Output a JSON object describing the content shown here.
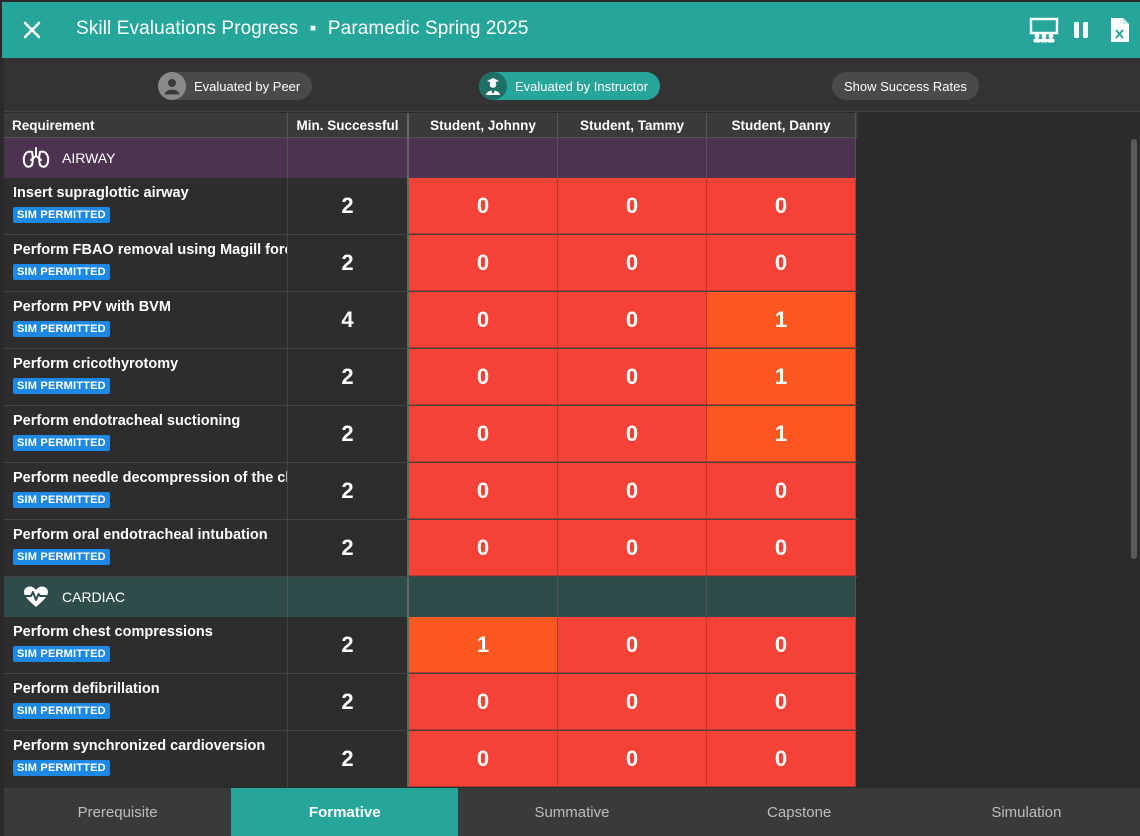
{
  "title": {
    "main": "Skill Evaluations Progress",
    "separator": "▪",
    "cohort": "Paramedic Spring 2025"
  },
  "toolbar_icons": [
    "presentation-icon",
    "pause-icon",
    "excel-export-icon"
  ],
  "filters": {
    "peer": "Evaluated by Peer",
    "instructor": "Evaluated by Instructor",
    "rates": "Show Success Rates"
  },
  "table": {
    "headers": {
      "requirement": "Requirement",
      "min": "Min. Successful",
      "students": [
        "Student, Johnny",
        "Student, Tammy",
        "Student, Danny"
      ]
    },
    "categories": [
      {
        "name": "AIRWAY",
        "icon": "airway-icon",
        "skills": [
          {
            "name": "Insert supraglottic airway",
            "badge": "SIM PERMITTED",
            "min": "2",
            "values": [
              "0",
              "0",
              "0"
            ]
          },
          {
            "name": "Perform FBAO removal using Magill forceps",
            "badge": "SIM PERMITTED",
            "min": "2",
            "values": [
              "0",
              "0",
              "0"
            ]
          },
          {
            "name": "Perform PPV with BVM",
            "badge": "SIM PERMITTED",
            "min": "4",
            "values": [
              "0",
              "0",
              "1"
            ]
          },
          {
            "name": "Perform cricothyrotomy",
            "badge": "SIM PERMITTED",
            "min": "2",
            "values": [
              "0",
              "0",
              "1"
            ]
          },
          {
            "name": "Perform endotracheal suctioning",
            "badge": "SIM PERMITTED",
            "min": "2",
            "values": [
              "0",
              "0",
              "1"
            ]
          },
          {
            "name": "Perform needle decompression of the chest",
            "badge": "SIM PERMITTED",
            "min": "2",
            "values": [
              "0",
              "0",
              "0"
            ]
          },
          {
            "name": "Perform oral endotracheal intubation",
            "badge": "SIM PERMITTED",
            "min": "2",
            "values": [
              "0",
              "0",
              "0"
            ]
          }
        ]
      },
      {
        "name": "CARDIAC",
        "icon": "heart-pulse-icon",
        "skills": [
          {
            "name": "Perform chest compressions",
            "badge": "SIM PERMITTED",
            "min": "2",
            "values": [
              "1",
              "0",
              "0"
            ]
          },
          {
            "name": "Perform defibrillation",
            "badge": "SIM PERMITTED",
            "min": "2",
            "values": [
              "0",
              "0",
              "0"
            ]
          },
          {
            "name": "Perform synchronized cardioversion",
            "badge": "SIM PERMITTED",
            "min": "2",
            "values": [
              "0",
              "0",
              "0"
            ]
          }
        ]
      }
    ]
  },
  "cell_colors": {
    "none": "#f44336",
    "partial": "#ff5722"
  },
  "tabs": [
    {
      "label": "Prerequisite",
      "active": false
    },
    {
      "label": "Formative",
      "active": true
    },
    {
      "label": "Summative",
      "active": false
    },
    {
      "label": "Capstone",
      "active": false
    },
    {
      "label": "Simulation",
      "active": false
    }
  ]
}
